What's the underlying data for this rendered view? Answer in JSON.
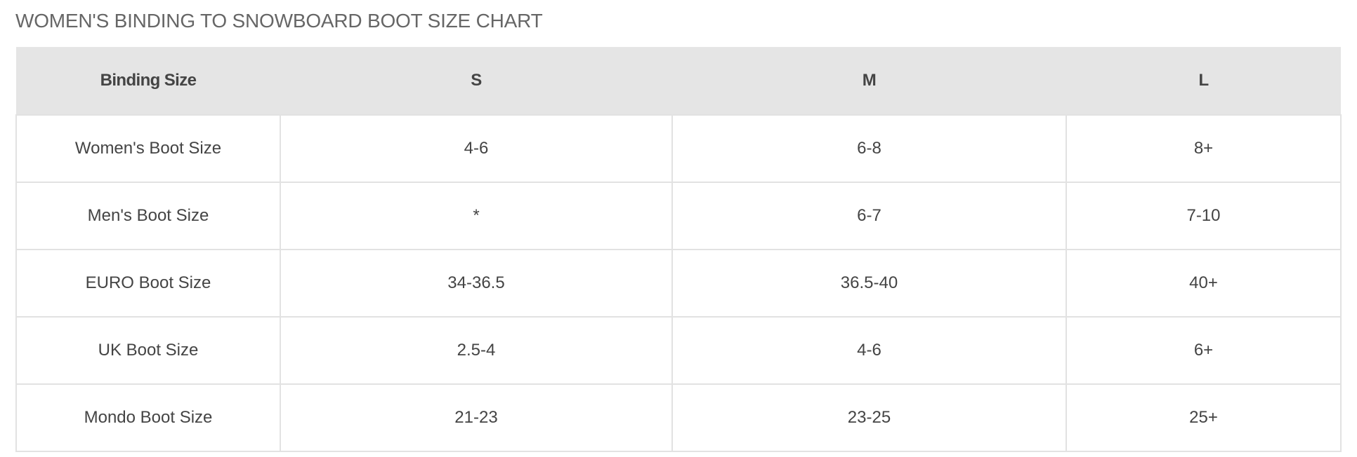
{
  "title": "WOMEN'S BINDING TO SNOWBOARD BOOT SIZE CHART",
  "table": {
    "headers": [
      "Binding Size",
      "S",
      "M",
      "L"
    ],
    "rows": [
      [
        "Women's Boot Size",
        "4-6",
        "6-8",
        "8+"
      ],
      [
        "Men's Boot Size",
        "*",
        "6-7",
        "7-10"
      ],
      [
        "EURO Boot Size",
        "34-36.5",
        "36.5-40",
        "40+"
      ],
      [
        "UK Boot Size",
        "2.5-4",
        "4-6",
        "6+"
      ],
      [
        "Mondo Boot Size",
        "21-23",
        "23-25",
        "25+"
      ]
    ]
  }
}
